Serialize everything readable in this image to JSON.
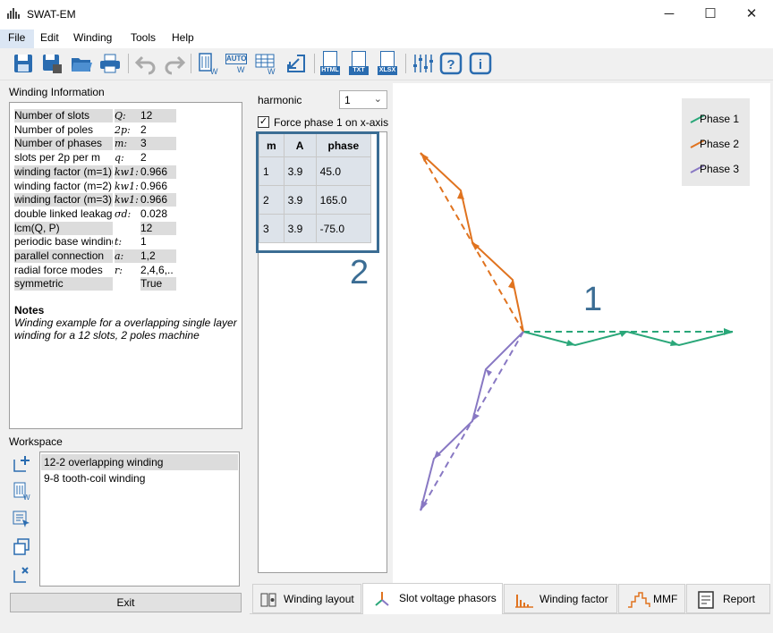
{
  "window": {
    "title": "SWAT-EM",
    "minimize": "─",
    "maximize": "☐",
    "close": "✕"
  },
  "menu": [
    "File",
    "Edit",
    "Winding",
    "Tools",
    "Help"
  ],
  "toolbar": {
    "icons": [
      "save-icon",
      "save-as-icon",
      "open-folder-icon",
      "print-icon",
      "undo-icon",
      "redo-icon",
      "define-winding-icon",
      "auto-winding-icon",
      "table-winding-icon",
      "import-icon",
      "export-html-icon",
      "export-txt-icon",
      "export-xlsx-icon",
      "settings-sliders-icon",
      "help-icon",
      "info-icon"
    ],
    "html_label": "HTML",
    "txt_label": "TXT",
    "xlsx_label": "XLSX",
    "auto_label": "AUTO"
  },
  "winding_info": {
    "title": "Winding Information",
    "rows": [
      {
        "label": "Number of slots",
        "sym": "Q:",
        "value": "12",
        "shade": true
      },
      {
        "label": "Number of poles",
        "sym": "2p:",
        "value": "2",
        "shade": false
      },
      {
        "label": "Number of phases",
        "sym": "m:",
        "value": "3",
        "shade": true
      },
      {
        "label": "slots per 2p per m",
        "sym": "q:",
        "value": "2",
        "shade": false
      },
      {
        "label": "winding factor (m=1)",
        "sym": "kw1:",
        "value": "0.966",
        "shade": true
      },
      {
        "label": "winding factor (m=2)",
        "sym": "kw1:",
        "value": "0.966",
        "shade": false
      },
      {
        "label": "winding factor (m=3)",
        "sym": "kw1:",
        "value": "0.966",
        "shade": true
      },
      {
        "label": "double linked leakage",
        "sym": "σd:",
        "value": "0.028",
        "shade": false
      },
      {
        "label": "lcm(Q, P)",
        "sym": "",
        "value": "12",
        "shade": true
      },
      {
        "label": "periodic base winding",
        "sym": "t:",
        "value": "1",
        "shade": false
      },
      {
        "label": "parallel connection",
        "sym": "a:",
        "value": "1,2",
        "shade": true
      },
      {
        "label": "radial force modes",
        "sym": "r:",
        "value": "2,4,6,..",
        "shade": false
      },
      {
        "label": "symmetric",
        "sym": "",
        "value": "True",
        "shade": true
      }
    ],
    "notes_title": "Notes",
    "notes_line1": "Winding example for a overlapping single layer",
    "notes_line2": "winding for a 12 slots, 2 poles machine"
  },
  "workspace": {
    "title": "Workspace",
    "items": [
      "12-2 overlapping winding",
      "9-8 tooth-coil winding"
    ],
    "exit_label": "Exit"
  },
  "harmonic": {
    "label": "harmonic",
    "value": "1",
    "force_label": "Force phase 1 on x-axis"
  },
  "phase_table": {
    "headers": [
      "m",
      "A",
      "phase"
    ],
    "rows": [
      [
        "1",
        "3.9",
        "45.0"
      ],
      [
        "2",
        "3.9",
        "165.0"
      ],
      [
        "3",
        "3.9",
        "-75.0"
      ]
    ]
  },
  "annotations": {
    "one": "1",
    "two": "2",
    "accent": "#3b6d94"
  },
  "legend": [
    {
      "name": "Phase 1",
      "color": "#2aa779"
    },
    {
      "name": "Phase 2",
      "color": "#e0731f"
    },
    {
      "name": "Phase 3",
      "color": "#8878c3"
    }
  ],
  "tabs": [
    "Winding layout",
    "Slot voltage phasors",
    "Winding factor",
    "MMF",
    "Report"
  ]
}
